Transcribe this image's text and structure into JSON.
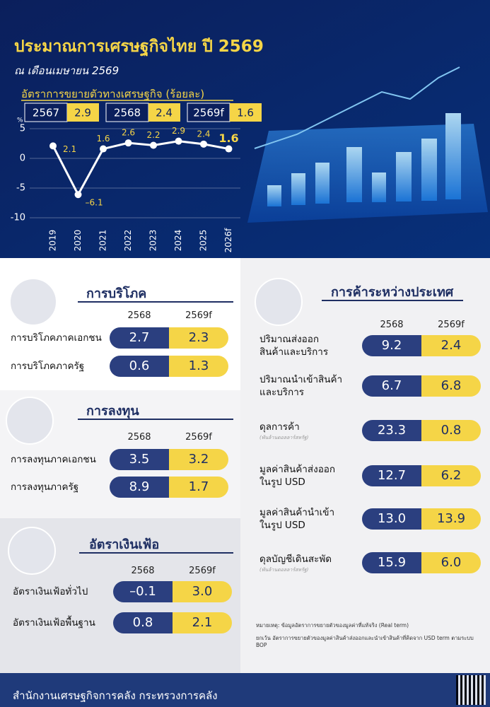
{
  "header": {
    "title": "ประมาณการเศรษฐกิจไทย ปี 2569",
    "subtitle": "ณ เดือนเมษายน 2569"
  },
  "chart_data": {
    "type": "line",
    "title": "อัตราการขยายตัวทางเศรษฐกิจ (ร้อยละ)",
    "highlights": [
      {
        "year": "2567",
        "value": 2.9
      },
      {
        "year": "2568",
        "value": 2.4
      },
      {
        "year": "2569f",
        "value": 1.6
      }
    ],
    "y_unit": "%",
    "categories": [
      "2019",
      "2020",
      "2021",
      "2022",
      "2023",
      "2024",
      "2025",
      "2026f"
    ],
    "values": [
      2.1,
      -6.1,
      1.6,
      2.6,
      2.2,
      2.9,
      2.4,
      1.6
    ],
    "value_labels": [
      "2.1",
      "–6.1",
      "1.6",
      "2.6",
      "2.2",
      "2.9",
      "2.4",
      "1.6"
    ],
    "color": "#ffffff",
    "label_color": "#f5d547",
    "ylim": [
      -10,
      5
    ],
    "yticks": [
      5,
      0,
      -5,
      -10
    ],
    "grid": true
  },
  "sections": [
    {
      "title": "การบริโภค",
      "columns": [
        "2568",
        "2569f"
      ],
      "rows": [
        {
          "label": [
            "การบริโภคภาคเอกชน"
          ],
          "values": [
            "2.7",
            "2.3"
          ]
        },
        {
          "label": [
            "การบริโภคภาครัฐ"
          ],
          "values": [
            "0.6",
            "1.3"
          ]
        }
      ]
    },
    {
      "title": "การลงทุน",
      "columns": [
        "2568",
        "2569f"
      ],
      "rows": [
        {
          "label": [
            "การลงทุนภาคเอกชน"
          ],
          "values": [
            "3.5",
            "3.2"
          ]
        },
        {
          "label": [
            "การลงทุนภาครัฐ"
          ],
          "values": [
            "8.9",
            "1.7"
          ]
        }
      ]
    },
    {
      "title": "อัตราเงินเฟ้อ",
      "columns": [
        "2568",
        "2569f"
      ],
      "rows": [
        {
          "label": [
            "อัตราเงินเฟ้อทั่วไป"
          ],
          "values": [
            "–0.1",
            "3.0"
          ]
        },
        {
          "label": [
            "อัตราเงินเฟ้อพื้นฐาน"
          ],
          "values": [
            "0.8",
            "2.1"
          ]
        }
      ]
    },
    {
      "title": "การค้าระหว่างประเทศ",
      "columns": [
        "2568",
        "2569f"
      ],
      "rows": [
        {
          "label": [
            "ปริมาณส่งออก",
            "สินค้าและบริการ"
          ],
          "values": [
            "9.2",
            "2.4"
          ]
        },
        {
          "label": [
            "ปริมาณนำเข้าสินค้า",
            "และบริการ"
          ],
          "values": [
            "6.7",
            "6.8"
          ]
        },
        {
          "label": [
            "ดุลการค้า"
          ],
          "note": "(พันล้านดอลลาร์สหรัฐ)",
          "values": [
            "23.3",
            "0.8"
          ]
        },
        {
          "label": [
            "มูลค่าสินค้าส่งออก",
            "ในรูป USD"
          ],
          "values": [
            "12.7",
            "6.2"
          ]
        },
        {
          "label": [
            "มูลค่าสินค้านำเข้า",
            "ในรูป USD"
          ],
          "values": [
            "13.0",
            "13.9"
          ]
        },
        {
          "label": [
            "ดุลบัญชีเดินสะพัด"
          ],
          "note": "(พันล้านดอลลาร์สหรัฐ)",
          "values": [
            "15.9",
            "6.0"
          ]
        }
      ]
    }
  ],
  "notes": [
    "หมายเหตุ: ข้อมูลอัตราการขยายตัวของมูลค่าที่แท้จริง (Real term)",
    "ยกเว้น อัตราการขยายตัวของมูลค่าสินค้าส่งออกและนำเข้าสินค้าที่คิดจาก USD term ตามระบบ BOP"
  ],
  "footer": {
    "text": "สำนักงานเศรษฐกิจการคลัง กระทรวงการคลัง"
  }
}
